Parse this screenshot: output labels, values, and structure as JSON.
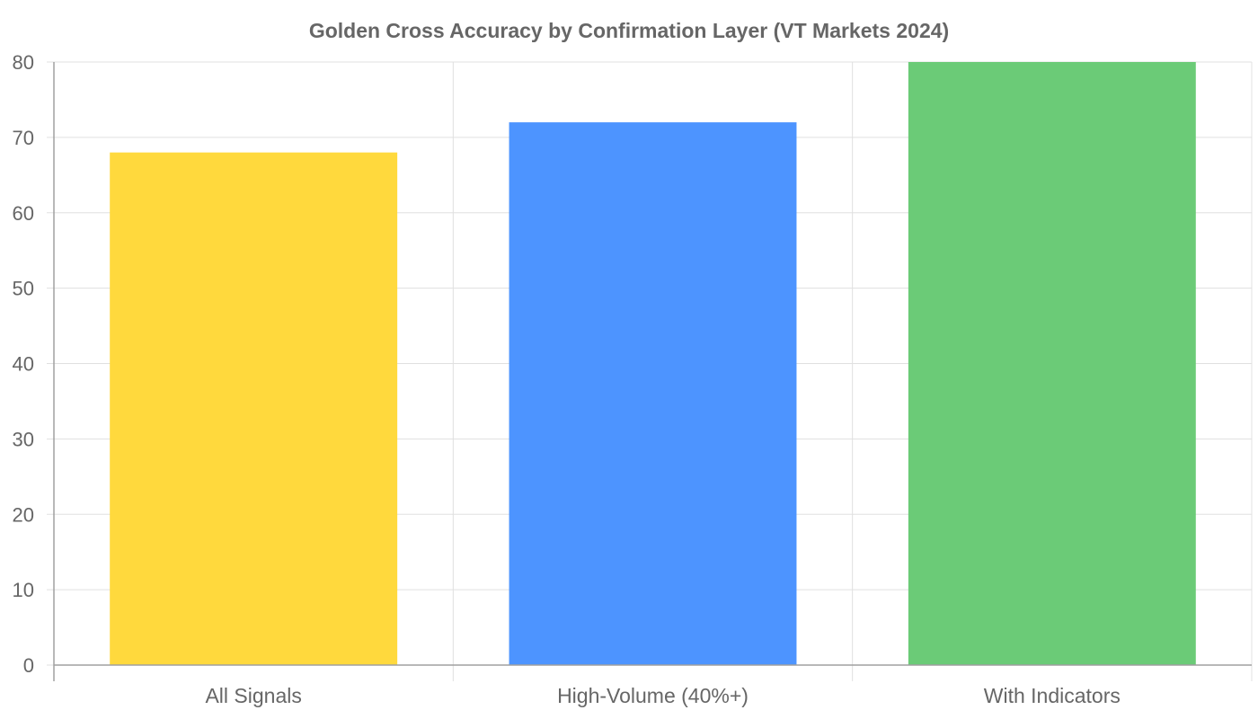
{
  "chart_data": {
    "type": "bar",
    "title": "Golden Cross Accuracy by Confirmation Layer (VT Markets 2024)",
    "categories": [
      "All Signals",
      "High-Volume (40%+)",
      "With Indicators"
    ],
    "values": [
      68,
      72,
      80
    ],
    "colors": [
      "#FFD93D",
      "#4D94FF",
      "#6BCB77"
    ],
    "xlabel": "",
    "ylabel": "",
    "ylim": [
      0,
      80
    ],
    "yticks": [
      0,
      10,
      20,
      30,
      40,
      50,
      60,
      70,
      80
    ],
    "grid": true,
    "legend": "none"
  }
}
